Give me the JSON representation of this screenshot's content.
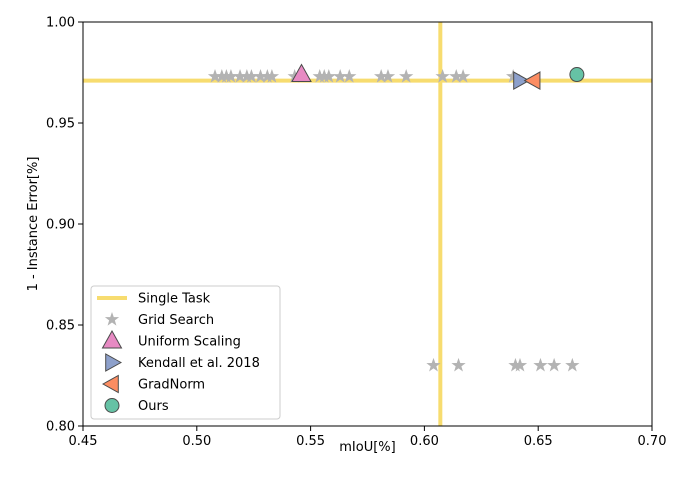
{
  "chart_data": {
    "type": "scatter",
    "title": "",
    "xlabel": "mIoU[%]",
    "ylabel": "1 - Instance Error[%]",
    "xlim": [
      0.45,
      0.7
    ],
    "ylim": [
      0.8,
      1.0
    ],
    "x_ticks": [
      "0.45",
      "0.50",
      "0.55",
      "0.60",
      "0.65",
      "0.70"
    ],
    "y_ticks": [
      "0.80",
      "0.85",
      "0.90",
      "0.95",
      "1.00"
    ],
    "grid": false,
    "legend_position": "lower-left",
    "reference_lines": {
      "name": "Single Task",
      "color": "#f7dc6f",
      "x": 0.607,
      "y": 0.971
    },
    "series": [
      {
        "name": "Grid Search",
        "marker": "star",
        "color": "#b3b3b3",
        "points": [
          [
            0.508,
            0.973
          ],
          [
            0.511,
            0.973
          ],
          [
            0.513,
            0.973
          ],
          [
            0.515,
            0.973
          ],
          [
            0.519,
            0.973
          ],
          [
            0.522,
            0.973
          ],
          [
            0.524,
            0.973
          ],
          [
            0.528,
            0.973
          ],
          [
            0.531,
            0.973
          ],
          [
            0.533,
            0.973
          ],
          [
            0.543,
            0.973
          ],
          [
            0.554,
            0.973
          ],
          [
            0.556,
            0.973
          ],
          [
            0.558,
            0.973
          ],
          [
            0.563,
            0.973
          ],
          [
            0.567,
            0.973
          ],
          [
            0.581,
            0.973
          ],
          [
            0.584,
            0.973
          ],
          [
            0.592,
            0.973
          ],
          [
            0.608,
            0.973
          ],
          [
            0.614,
            0.973
          ],
          [
            0.617,
            0.973
          ],
          [
            0.639,
            0.973
          ],
          [
            0.604,
            0.83
          ],
          [
            0.615,
            0.83
          ],
          [
            0.64,
            0.83
          ],
          [
            0.642,
            0.83
          ],
          [
            0.651,
            0.83
          ],
          [
            0.657,
            0.83
          ],
          [
            0.665,
            0.83
          ]
        ]
      },
      {
        "name": "Uniform Scaling",
        "marker": "triangle-up",
        "color": "#e78ac3",
        "points": [
          [
            0.546,
            0.974
          ]
        ]
      },
      {
        "name": "Kendall et al. 2018",
        "marker": "triangle-right",
        "color": "#8da0cb",
        "points": [
          [
            0.642,
            0.971
          ]
        ]
      },
      {
        "name": "GradNorm",
        "marker": "triangle-left",
        "color": "#fc8d62",
        "points": [
          [
            0.648,
            0.971
          ]
        ]
      },
      {
        "name": "Ours",
        "marker": "circle",
        "color": "#66c2a5",
        "points": [
          [
            0.667,
            0.974
          ]
        ]
      }
    ]
  }
}
